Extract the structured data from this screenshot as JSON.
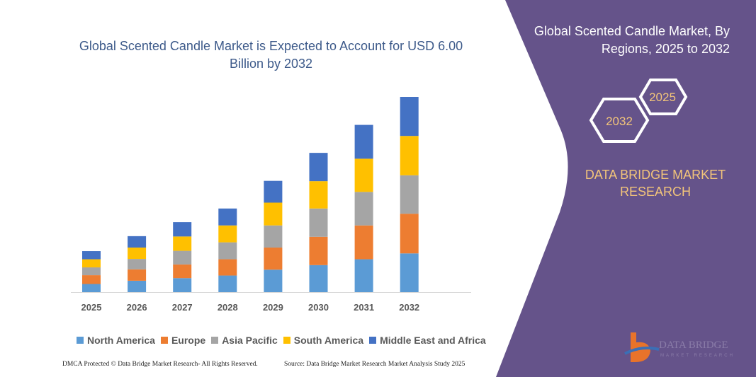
{
  "header": {
    "title": "Global Scented Candle Market is Expected to Account for USD 6.00 Billion by 2032",
    "side_title": "Global Scented Candle Market, By Regions, 2025 to 2032",
    "hex_start": "2025",
    "hex_end": "2032",
    "brand_text": "DATA BRIDGE MARKET RESEARCH"
  },
  "logo": {
    "line1": "DATA BRIDGE",
    "line2": "MARKET RESEARCH"
  },
  "footer": {
    "dmca": "DMCA Protected © Data Bridge Market Research-  All Rights Reserved.",
    "source": "Source:  Data Bridge Market Research  Market Analysis Study 2025"
  },
  "colors": {
    "panel": "#65538a",
    "title": "#3d5a8a",
    "accent": "#f2c47a"
  },
  "chart_data": {
    "type": "bar",
    "stacked": true,
    "title": "Global Scented Candle Market is Expected to Account for USD 6.00 Billion by 2032",
    "categories": [
      "2025",
      "2026",
      "2027",
      "2028",
      "2029",
      "2030",
      "2031",
      "2032"
    ],
    "series": [
      {
        "name": "North America",
        "color": "#5b9bd5",
        "values": [
          0.25,
          0.35,
          0.43,
          0.51,
          0.69,
          0.83,
          1.01,
          1.19
        ]
      },
      {
        "name": "Europe",
        "color": "#ed7d31",
        "values": [
          0.27,
          0.35,
          0.42,
          0.5,
          0.68,
          0.87,
          1.04,
          1.22
        ]
      },
      {
        "name": "Asia Pacific",
        "color": "#a5a5a5",
        "values": [
          0.24,
          0.32,
          0.42,
          0.52,
          0.68,
          0.87,
          1.03,
          1.18
        ]
      },
      {
        "name": "South America",
        "color": "#ffc000",
        "values": [
          0.25,
          0.35,
          0.44,
          0.52,
          0.7,
          0.84,
          1.02,
          1.21
        ]
      },
      {
        "name": "Middle East and Africa",
        "color": "#4472c4",
        "values": [
          0.25,
          0.35,
          0.44,
          0.52,
          0.67,
          0.87,
          1.04,
          1.2
        ]
      }
    ],
    "ylim": [
      0,
      6.0
    ],
    "grid": false,
    "legend": "bottom"
  }
}
